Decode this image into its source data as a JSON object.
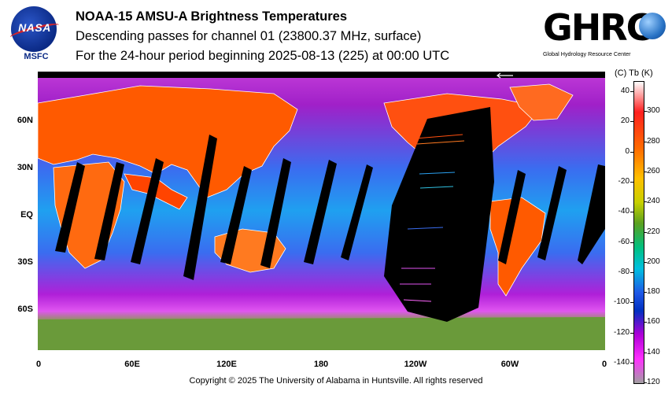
{
  "header": {
    "title": "NOAA-15 AMSU-A Brightness Temperatures",
    "subtitle": "Descending passes for channel 01 (23800.37 MHz, surface)",
    "period": "For the 24-hour period beginning 2025-08-13 (225) at 00:00 UTC"
  },
  "logos": {
    "nasa_text": "NASA",
    "nasa_center": "MSFC",
    "ghrc_text": "GHRC",
    "ghrc_subtitle": "Global Hydrology Resource Center"
  },
  "map": {
    "projection": "equirectangular",
    "lat_labels": [
      "60N",
      "30N",
      "EQ",
      "30S",
      "60S"
    ],
    "lon_labels": [
      "0",
      "60E",
      "120E",
      "180",
      "120W",
      "60W",
      "0"
    ],
    "colors": {
      "ocean_cold": "#b300d6",
      "ocean_mid": "#e040f0",
      "ocean_warm": "#1f58e6",
      "land_warm": "#ff6a00",
      "land_hot": "#e52000",
      "ice": "#7fa040",
      "antarctica": "#ffffff",
      "swath_gap": "#000000",
      "coastline": "#ffffff"
    }
  },
  "colorbar": {
    "header": "(C)  Tb  (K)",
    "celsius_ticks": [
      "40",
      "20",
      "0",
      "-20",
      "-40",
      "-60",
      "-80",
      "-100",
      "-120",
      "-140"
    ],
    "kelvin_ticks": [
      "300",
      "280",
      "260",
      "240",
      "220",
      "200",
      "180",
      "160",
      "140",
      "120"
    ],
    "kelvin_range": [
      120,
      320
    ]
  },
  "footer": {
    "copyright": "Copyright © 2025 The University of Alabama in Huntsville.  All rights reserved"
  }
}
